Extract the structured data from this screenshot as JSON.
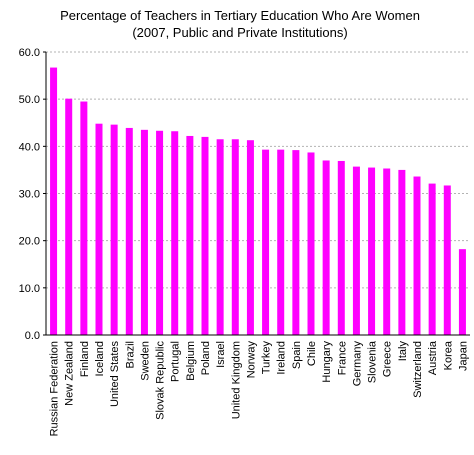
{
  "chart_data": {
    "type": "bar",
    "title": "Percentage of Teachers in Tertiary Education Who Are Women",
    "subtitle": "(2007, Public and Private Institutions)",
    "xlabel": "",
    "ylabel": "",
    "ylim": [
      0,
      60
    ],
    "yticks": [
      "0.0",
      "10.0",
      "20.0",
      "30.0",
      "40.0",
      "50.0",
      "60.0"
    ],
    "grid": true,
    "legend": "none",
    "bar_color": "#ff00ff",
    "categories": [
      "Russian Federation",
      "New Zealand",
      "Finland",
      "Iceland",
      "United States",
      "Brazil",
      "Sweden",
      "Slovak Republic",
      "Portugal",
      "Belgium",
      "Poland",
      "Israel",
      "United Kingdom",
      "Norway",
      "Turkey",
      "Ireland",
      "Spain",
      "Chile",
      "Hungary",
      "France",
      "Germany",
      "Slovenia",
      "Greece",
      "Italy",
      "Switzerland",
      "Austria",
      "Korea",
      "Japan"
    ],
    "values": [
      56.7,
      50.1,
      49.5,
      44.8,
      44.6,
      43.9,
      43.5,
      43.3,
      43.2,
      42.2,
      42.0,
      41.5,
      41.5,
      41.3,
      39.3,
      39.3,
      39.2,
      38.7,
      37.0,
      36.9,
      35.7,
      35.5,
      35.3,
      35.0,
      33.6,
      32.1,
      31.7,
      18.2
    ]
  }
}
